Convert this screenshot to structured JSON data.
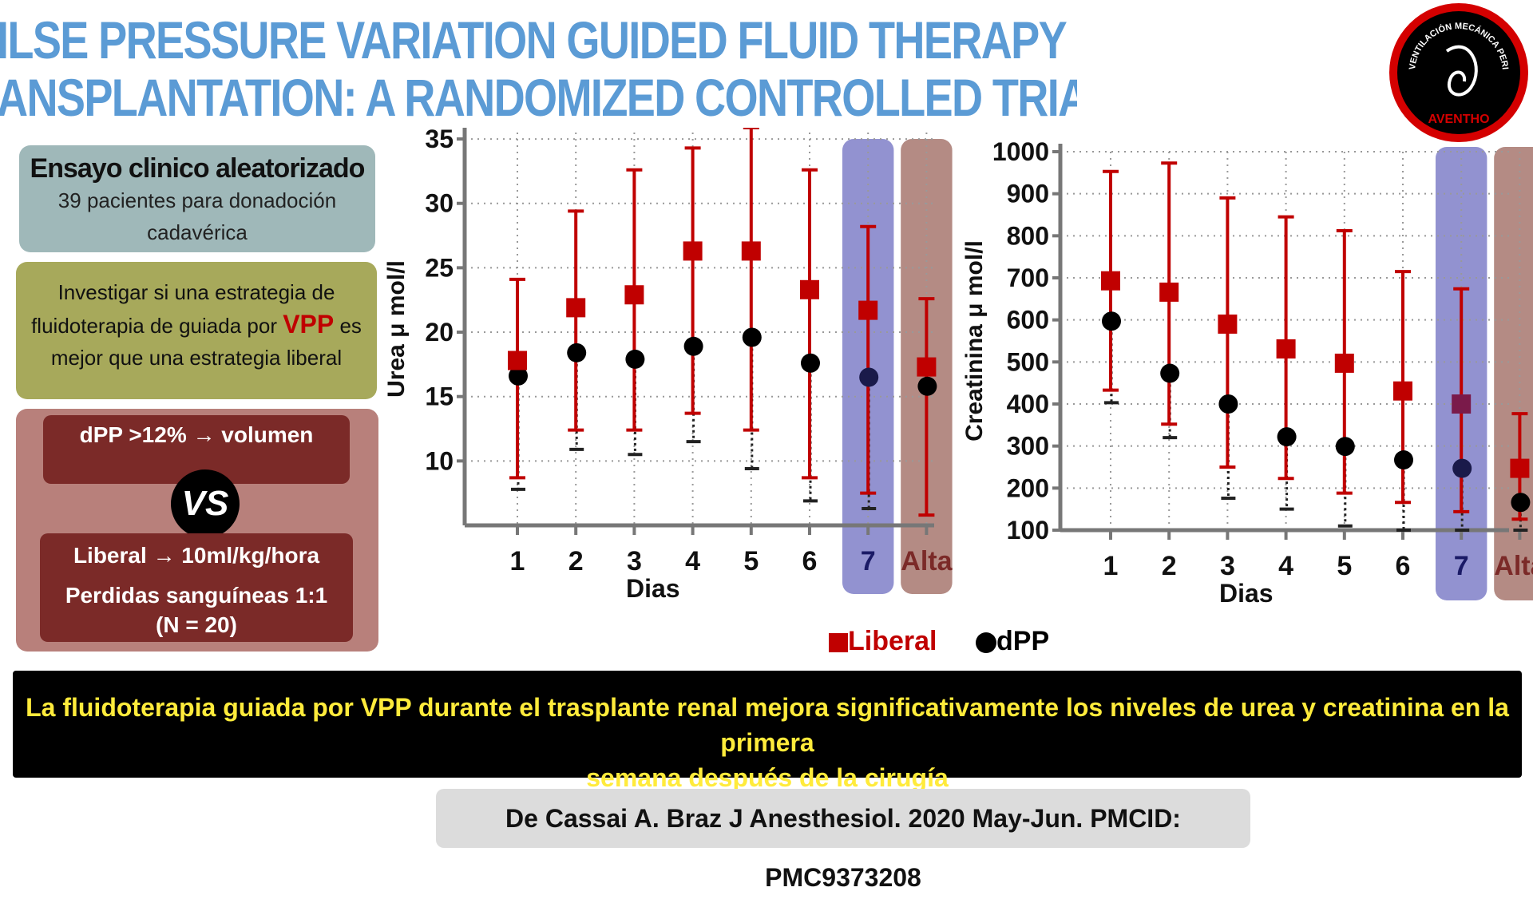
{
  "title": {
    "line1": "ILSE PRESSURE VARIATION GUIDED FLUID THERAPY DURING KIDNEY",
    "line2": "ANSPLANTATION: A RANDOMIZED CONTROLLED TRIAL"
  },
  "cards": {
    "design_heading": "Ensayo clinico aleatorizado",
    "design_text_1": "39 pacientes para donadoción",
    "design_text_2": "cadavérica",
    "objective_1": "Investigar si una estrategia de",
    "objective_2a": "fluidoterapia de guiada por ",
    "objective_vpp": "VPP",
    "objective_2b": " es",
    "objective_3": "mejor que una estrategia liberal",
    "arm_dpp": "dPP >12% → volumen",
    "vs": "VS",
    "arm_liberal_1": "Liberal →  10ml/kg/hora",
    "arm_liberal_2": "Perdidas sanguíneas 1:1",
    "arm_liberal_3": "(N = 20)"
  },
  "logo": {
    "text": "VENTILACIÓN MECÁNICA PERIOPERATORIA",
    "brand": "AVENTHO",
    "colors": {
      "ring": "#d40000",
      "center": "#000000"
    }
  },
  "legend": {
    "liberal": "Liberal",
    "dpp": "dPP"
  },
  "conclusion": {
    "line1": "La fluidoterapia guiada por VPP durante el trasplante renal mejora significativamente los niveles de urea y creatinina en la primera",
    "line2": "semana después de la cirugía"
  },
  "citation": "De Cassai A. Braz J Anesthesiol. 2020 May-Jun. PMCID: PMC9373208",
  "colors": {
    "liberal": "#c00000",
    "dpp": "#000000",
    "title": "#5b9bd5",
    "highlight_7": "#7f7fc8",
    "highlight_alta": "#a7776f"
  },
  "chart_data": [
    {
      "type": "scatter",
      "title": "",
      "xlabel": "Dias",
      "ylabel": "Urea μ mol/l",
      "categories": [
        "1",
        "2",
        "3",
        "4",
        "5",
        "6",
        "7",
        "Alta"
      ],
      "yticks": [
        10,
        15,
        20,
        25,
        30,
        35
      ],
      "ylim": [
        5,
        35.5
      ],
      "grid": true,
      "highlighted_categories": [
        "7",
        "Alta"
      ],
      "series": [
        {
          "name": "Liberal",
          "marker": "square",
          "values": [
            17.8,
            21.9,
            22.9,
            26.3,
            26.3,
            23.3,
            21.7,
            17.3
          ],
          "low": [
            8.7,
            12.4,
            12.4,
            13.7,
            12.4,
            8.7,
            7.5,
            5.8
          ],
          "high": [
            24.1,
            29.4,
            32.6,
            34.3,
            36.0,
            32.6,
            28.2,
            22.6
          ]
        },
        {
          "name": "dPP",
          "marker": "circle",
          "values": [
            16.6,
            18.4,
            17.9,
            18.9,
            19.6,
            17.6,
            16.5,
            15.8
          ],
          "low": [
            7.8,
            10.9,
            10.5,
            11.5,
            9.4,
            6.9,
            6.3,
            null
          ],
          "high": [
            null,
            null,
            null,
            null,
            null,
            null,
            null,
            null
          ]
        }
      ]
    },
    {
      "type": "scatter",
      "title": "",
      "xlabel": "Dias",
      "ylabel": "Creatinina μ mol/l",
      "categories": [
        "1",
        "2",
        "3",
        "4",
        "5",
        "6",
        "7",
        "Alta"
      ],
      "yticks": [
        100,
        200,
        300,
        400,
        500,
        600,
        700,
        800,
        900,
        1000
      ],
      "ylim": [
        100,
        1000
      ],
      "grid": true,
      "highlighted_categories": [
        "7",
        "Alta"
      ],
      "series": [
        {
          "name": "Liberal",
          "marker": "square",
          "values": [
            693,
            666,
            590,
            531,
            497,
            431,
            400,
            247
          ],
          "low": [
            433,
            352,
            250,
            223,
            188,
            166,
            144,
            126
          ],
          "high": [
            953,
            973,
            890,
            845,
            812,
            715,
            674,
            377
          ]
        },
        {
          "name": "dPP",
          "marker": "circle",
          "values": [
            597,
            473,
            400,
            322,
            299,
            267,
            247,
            166
          ],
          "low": [
            403,
            320,
            176,
            150,
            110,
            100,
            100,
            100
          ],
          "high": [
            null,
            null,
            null,
            null,
            null,
            null,
            null,
            null
          ]
        }
      ]
    }
  ]
}
